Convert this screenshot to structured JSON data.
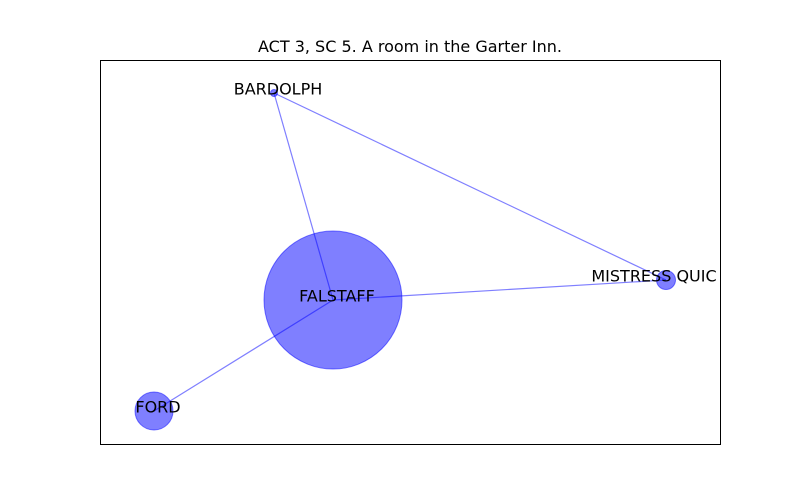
{
  "title": "ACT 3, SC 5. A room in the Garter Inn.",
  "colors": {
    "node": "#0000ff",
    "edge": "#0000ff",
    "frame": "#000000",
    "background": "#ffffff"
  },
  "nodes": [
    {
      "id": "bardolph",
      "label": "BARDOLPH",
      "weight": "smallest"
    },
    {
      "id": "falstaff",
      "label": "FALSTAFF",
      "weight": "largest"
    },
    {
      "id": "mistress_quickly",
      "label": "MISTRESS QUIC",
      "weight": "small"
    },
    {
      "id": "ford",
      "label": "FORD",
      "weight": "medium"
    }
  ],
  "edges": [
    {
      "source": "bardolph",
      "target": "falstaff"
    },
    {
      "source": "bardolph",
      "target": "mistress_quickly"
    },
    {
      "source": "falstaff",
      "target": "mistress_quickly"
    },
    {
      "source": "falstaff",
      "target": "ford"
    }
  ]
}
